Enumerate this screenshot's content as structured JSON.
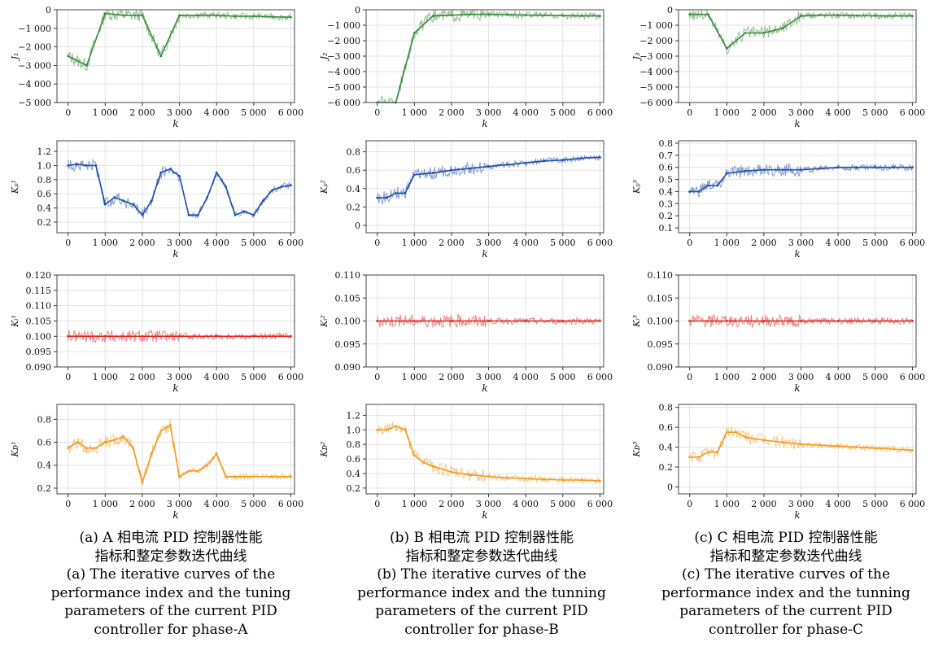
{
  "chart_data": [
    {
      "type": "line",
      "panel": "a",
      "ylabel": "J₁",
      "xlabel": "k",
      "color": "#3a8a3a",
      "xticks": [
        0,
        1000,
        2000,
        3000,
        4000,
        5000,
        6000
      ],
      "xtick_labels": [
        "0",
        "1 000",
        "2 000",
        "3 000",
        "4 000",
        "5 000",
        "6 000"
      ],
      "xlim": [
        -300,
        6100
      ],
      "ylim": [
        -5000,
        0
      ],
      "yticks": [
        0,
        -1000,
        -2000,
        -3000,
        -4000,
        -5000
      ],
      "ytick_labels": [
        "0",
        "−1 000",
        "−2 000",
        "−3 000",
        "−4 000",
        "−5 000"
      ],
      "x": [
        0,
        500,
        1000,
        1500,
        2000,
        2500,
        3000,
        3500,
        4000,
        4500,
        5000,
        5500,
        6000
      ],
      "values": [
        -2500,
        -3000,
        -200,
        -300,
        -300,
        -2500,
        -300,
        -300,
        -300,
        -350,
        -350,
        -380,
        -400
      ]
    },
    {
      "type": "line",
      "panel": "b",
      "ylabel": "J₂",
      "xlabel": "k",
      "color": "#3a8a3a",
      "xticks": [
        0,
        1000,
        2000,
        3000,
        4000,
        5000,
        6000
      ],
      "xtick_labels": [
        "0",
        "1 000",
        "2 000",
        "3 000",
        "4 000",
        "5 000",
        "6 000"
      ],
      "xlim": [
        -300,
        6100
      ],
      "ylim": [
        -6000,
        0
      ],
      "yticks": [
        0,
        -1000,
        -2000,
        -3000,
        -4000,
        -5000,
        -6000
      ],
      "ytick_labels": [
        "0",
        "−1 000",
        "−2 000",
        "−3 000",
        "−4 000",
        "−5 000",
        "−6 000"
      ],
      "x": [
        0,
        500,
        1000,
        1500,
        2000,
        2500,
        3000,
        3500,
        4000,
        4500,
        5000,
        5500,
        6000
      ],
      "values": [
        -6000,
        -6000,
        -1500,
        -400,
        -350,
        -300,
        -300,
        -320,
        -340,
        -360,
        -380,
        -390,
        -400
      ]
    },
    {
      "type": "line",
      "panel": "c",
      "ylabel": "J₃",
      "xlabel": "k",
      "color": "#3a8a3a",
      "xticks": [
        0,
        1000,
        2000,
        3000,
        4000,
        5000,
        6000
      ],
      "xtick_labels": [
        "0",
        "1 000",
        "2 000",
        "3 000",
        "4 000",
        "5 000",
        "6 000"
      ],
      "xlim": [
        -300,
        6100
      ],
      "ylim": [
        -6000,
        0
      ],
      "yticks": [
        0,
        -1000,
        -2000,
        -3000,
        -4000,
        -5000,
        -6000
      ],
      "ytick_labels": [
        "0",
        "−1 000",
        "−2 000",
        "−3 000",
        "−4 000",
        "−5 000",
        "−6 000"
      ],
      "x": [
        0,
        500,
        1000,
        1500,
        2000,
        2500,
        3000,
        3500,
        4000,
        4500,
        5000,
        5500,
        6000
      ],
      "values": [
        -300,
        -300,
        -2500,
        -1500,
        -1500,
        -1200,
        -400,
        -350,
        -350,
        -380,
        -390,
        -400,
        -400
      ]
    },
    {
      "type": "line",
      "panel": "a",
      "ylabel": "Kₚ¹",
      "xlabel": "k",
      "color": "#1f4fa8",
      "xticks": [
        0,
        1000,
        2000,
        3000,
        4000,
        5000,
        6000
      ],
      "xtick_labels": [
        "0",
        "1 000",
        "2 000",
        "3 000",
        "4 000",
        "5 000",
        "6 000"
      ],
      "xlim": [
        -300,
        6100
      ],
      "ylim": [
        0.05,
        1.35
      ],
      "yticks": [
        0.2,
        0.4,
        0.6,
        0.8,
        1.0,
        1.2
      ],
      "ytick_labels": [
        "0.2",
        "0.4",
        "0.6",
        "0.8",
        "1.0",
        "1.2"
      ],
      "x": [
        0,
        250,
        500,
        750,
        1000,
        1250,
        1500,
        1750,
        2000,
        2250,
        2500,
        2750,
        3000,
        3250,
        3500,
        3750,
        4000,
        4250,
        4500,
        4750,
        5000,
        5250,
        5500,
        5750,
        6000
      ],
      "values": [
        1.0,
        1.02,
        1.0,
        1.0,
        0.45,
        0.55,
        0.5,
        0.45,
        0.3,
        0.5,
        0.9,
        0.95,
        0.85,
        0.3,
        0.3,
        0.55,
        0.9,
        0.7,
        0.3,
        0.35,
        0.3,
        0.5,
        0.65,
        0.7,
        0.72
      ]
    },
    {
      "type": "line",
      "panel": "b",
      "ylabel": "Kₚ²",
      "xlabel": "k",
      "color": "#1f4fa8",
      "xticks": [
        0,
        1000,
        2000,
        3000,
        4000,
        5000,
        6000
      ],
      "xtick_labels": [
        "0",
        "1 000",
        "2 000",
        "3 000",
        "4 000",
        "5 000",
        "6 000"
      ],
      "xlim": [
        -300,
        6100
      ],
      "ylim": [
        -0.08,
        0.92
      ],
      "yticks": [
        0,
        0.2,
        0.4,
        0.6,
        0.8
      ],
      "ytick_labels": [
        "0",
        "0.2",
        "0.4",
        "0.6",
        "0.8"
      ],
      "x": [
        0,
        250,
        500,
        750,
        1000,
        1500,
        2000,
        2500,
        3000,
        3500,
        4000,
        4500,
        5000,
        5500,
        6000
      ],
      "values": [
        0.3,
        0.3,
        0.35,
        0.35,
        0.55,
        0.57,
        0.6,
        0.62,
        0.64,
        0.66,
        0.68,
        0.7,
        0.71,
        0.73,
        0.74
      ]
    },
    {
      "type": "line",
      "panel": "c",
      "ylabel": "Kₚ³",
      "xlabel": "k",
      "color": "#1f4fa8",
      "xticks": [
        0,
        1000,
        2000,
        3000,
        4000,
        5000,
        6000
      ],
      "xtick_labels": [
        "0",
        "1 000",
        "2 000",
        "3 000",
        "4 000",
        "5 000",
        "6 000"
      ],
      "xlim": [
        -300,
        6100
      ],
      "ylim": [
        0.06,
        0.82
      ],
      "yticks": [
        0.1,
        0.2,
        0.3,
        0.4,
        0.5,
        0.6,
        0.7,
        0.8
      ],
      "ytick_labels": [
        "0.1",
        "0.2",
        "0.3",
        "0.4",
        "0.5",
        "0.6",
        "0.7",
        "0.8"
      ],
      "x": [
        0,
        250,
        500,
        750,
        1000,
        1500,
        2000,
        2500,
        3000,
        3500,
        4000,
        4500,
        5000,
        5500,
        6000
      ],
      "values": [
        0.4,
        0.4,
        0.45,
        0.45,
        0.55,
        0.57,
        0.58,
        0.58,
        0.58,
        0.59,
        0.6,
        0.6,
        0.6,
        0.6,
        0.6
      ]
    },
    {
      "type": "line",
      "panel": "a",
      "ylabel": "Kᵢ¹",
      "xlabel": "k",
      "color": "#e02020",
      "xticks": [
        0,
        1000,
        2000,
        3000,
        4000,
        5000,
        6000
      ],
      "xtick_labels": [
        "0",
        "1 000",
        "2 000",
        "3 000",
        "4 000",
        "5 000",
        "6 000"
      ],
      "xlim": [
        -300,
        6100
      ],
      "ylim": [
        0.09,
        0.12
      ],
      "yticks": [
        0.09,
        0.095,
        0.1,
        0.105,
        0.11,
        0.115,
        0.12
      ],
      "ytick_labels": [
        "0.090",
        "0.095",
        "0.100",
        "0.105",
        "0.110",
        "0.115",
        "0.120"
      ],
      "x": [
        0,
        1000,
        2000,
        3000,
        4000,
        5000,
        6000
      ],
      "values": [
        0.1,
        0.1,
        0.1,
        0.1,
        0.1,
        0.1,
        0.1
      ]
    },
    {
      "type": "line",
      "panel": "b",
      "ylabel": "Kᵢ²",
      "xlabel": "k",
      "color": "#e02020",
      "xticks": [
        0,
        1000,
        2000,
        3000,
        4000,
        5000,
        6000
      ],
      "xtick_labels": [
        "0",
        "1 000",
        "2 000",
        "3 000",
        "4 000",
        "5 000",
        "6 000"
      ],
      "xlim": [
        -300,
        6100
      ],
      "ylim": [
        0.09,
        0.11
      ],
      "yticks": [
        0.09,
        0.095,
        0.1,
        0.105,
        0.11
      ],
      "ytick_labels": [
        "0.090",
        "0.095",
        "0.100",
        "0.105",
        "0.110"
      ],
      "x": [
        0,
        1000,
        2000,
        3000,
        4000,
        5000,
        6000
      ],
      "values": [
        0.1,
        0.1,
        0.1,
        0.1,
        0.1,
        0.1,
        0.1
      ]
    },
    {
      "type": "line",
      "panel": "c",
      "ylabel": "Kᵢ³",
      "xlabel": "k",
      "color": "#e02020",
      "xticks": [
        0,
        1000,
        2000,
        3000,
        4000,
        5000,
        6000
      ],
      "xtick_labels": [
        "0",
        "1 000",
        "2 000",
        "3 000",
        "4 000",
        "5 000",
        "6 000"
      ],
      "xlim": [
        -300,
        6100
      ],
      "ylim": [
        0.09,
        0.11
      ],
      "yticks": [
        0.09,
        0.095,
        0.1,
        0.105,
        0.11
      ],
      "ytick_labels": [
        "0.090",
        "0.095",
        "0.100",
        "0.105",
        "0.110"
      ],
      "x": [
        0,
        1000,
        2000,
        3000,
        4000,
        5000,
        6000
      ],
      "values": [
        0.1,
        0.1,
        0.1,
        0.1,
        0.1,
        0.1,
        0.1
      ]
    },
    {
      "type": "line",
      "panel": "a",
      "ylabel": "Kᴅ¹",
      "xlabel": "k",
      "color": "#f59b22",
      "xticks": [
        0,
        1000,
        2000,
        3000,
        4000,
        5000,
        6000
      ],
      "xtick_labels": [
        "0",
        "1 000",
        "2 000",
        "3 000",
        "4 000",
        "5 000",
        "6 000"
      ],
      "xlim": [
        -300,
        6100
      ],
      "ylim": [
        0.15,
        0.93
      ],
      "yticks": [
        0.2,
        0.4,
        0.6,
        0.8
      ],
      "ytick_labels": [
        "0.2",
        "0.4",
        "0.6",
        "0.8"
      ],
      "x": [
        0,
        250,
        500,
        750,
        1000,
        1250,
        1500,
        1750,
        2000,
        2250,
        2500,
        2750,
        3000,
        3250,
        3500,
        3750,
        4000,
        4250,
        4500,
        4750,
        5000,
        5500,
        6000
      ],
      "values": [
        0.55,
        0.6,
        0.55,
        0.55,
        0.6,
        0.62,
        0.65,
        0.55,
        0.25,
        0.5,
        0.7,
        0.75,
        0.3,
        0.35,
        0.35,
        0.4,
        0.5,
        0.3,
        0.3,
        0.3,
        0.3,
        0.3,
        0.3
      ]
    },
    {
      "type": "line",
      "panel": "b",
      "ylabel": "Kᴅ²",
      "xlabel": "k",
      "color": "#f59b22",
      "xticks": [
        0,
        1000,
        2000,
        3000,
        4000,
        5000,
        6000
      ],
      "xtick_labels": [
        "0",
        "1 000",
        "2 000",
        "3 000",
        "4 000",
        "5 000",
        "6 000"
      ],
      "xlim": [
        -300,
        6100
      ],
      "ylim": [
        0.12,
        1.35
      ],
      "yticks": [
        0.2,
        0.4,
        0.6,
        0.8,
        1.0,
        1.2
      ],
      "ytick_labels": [
        "0.2",
        "0.4",
        "0.6",
        "0.8",
        "1.0",
        "1.2"
      ],
      "x": [
        0,
        250,
        500,
        750,
        1000,
        1250,
        1500,
        2000,
        2500,
        3000,
        3500,
        4000,
        4500,
        5000,
        5500,
        6000
      ],
      "values": [
        1.0,
        1.0,
        1.05,
        1.0,
        0.65,
        0.55,
        0.5,
        0.42,
        0.38,
        0.36,
        0.34,
        0.33,
        0.32,
        0.31,
        0.31,
        0.3
      ]
    },
    {
      "type": "line",
      "panel": "c",
      "ylabel": "Kᴅ³",
      "xlabel": "k",
      "color": "#f59b22",
      "xticks": [
        0,
        1000,
        2000,
        3000,
        4000,
        5000,
        6000
      ],
      "xtick_labels": [
        "0",
        "1 000",
        "2 000",
        "3 000",
        "4 000",
        "5 000",
        "6 000"
      ],
      "xlim": [
        -300,
        6100
      ],
      "ylim": [
        -0.07,
        0.83
      ],
      "yticks": [
        0,
        0.2,
        0.4,
        0.6,
        0.8
      ],
      "ytick_labels": [
        "0",
        "0.2",
        "0.4",
        "0.6",
        "0.8"
      ],
      "x": [
        0,
        250,
        500,
        750,
        1000,
        1250,
        1500,
        2000,
        2500,
        3000,
        3500,
        4000,
        4500,
        5000,
        5500,
        6000
      ],
      "values": [
        0.3,
        0.3,
        0.35,
        0.35,
        0.55,
        0.55,
        0.5,
        0.47,
        0.45,
        0.43,
        0.42,
        0.41,
        0.4,
        0.39,
        0.38,
        0.37
      ]
    }
  ],
  "captions": {
    "a": {
      "cn1": "(a) A 相电流 PID 控制器性能",
      "cn2": "指标和整定参数迭代曲线",
      "en1": "(a) The iterative curves of the",
      "en2": "performance index and the tuning",
      "en3": "parameters of the current PID",
      "en4": "controller for phase-A"
    },
    "b": {
      "cn1": "(b) B 相电流 PID 控制器性能",
      "cn2": "指标和整定参数迭代曲线",
      "en1": "(b) The iterative curves of the",
      "en2": "performance index and the tunning",
      "en3": "parameters of the current PID",
      "en4": "controller for phase-B"
    },
    "c": {
      "cn1": "(c) C 相电流 PID 控制器性能",
      "cn2": "指标和整定参数迭代曲线",
      "en1": "(c) The iterative curves of the",
      "en2": "performance index and the tunning",
      "en3": "parameters of the current PID",
      "en4": "controller for phase-C"
    }
  }
}
